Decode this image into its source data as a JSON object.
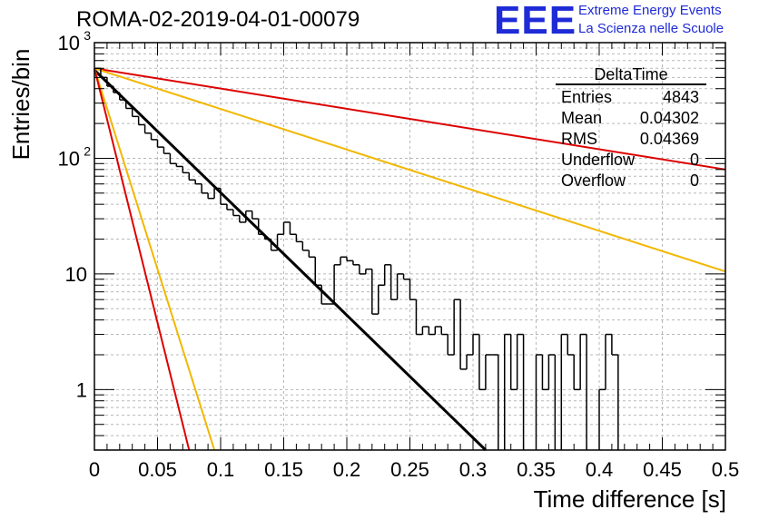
{
  "header": {
    "title": "ROMA-02-2019-04-01-00079",
    "logo_text": "EEE",
    "logo_line1": "Extreme Energy Events",
    "logo_line2": "La Scienza nelle Scuole"
  },
  "stats_box": {
    "title": "DeltaTime",
    "rows": [
      {
        "label": "Entries",
        "value": "4843"
      },
      {
        "label": "Mean",
        "value": "0.04302"
      },
      {
        "label": "RMS",
        "value": "0.04369"
      },
      {
        "label": "Underflow",
        "value": "0"
      },
      {
        "label": "Overflow",
        "value": "0"
      }
    ]
  },
  "chart_data": {
    "type": "histogram",
    "xlabel": "Time difference [s]",
    "ylabel": "Entries/bin",
    "xlim": [
      0,
      0.5
    ],
    "ylim": [
      0.3,
      1000
    ],
    "yscale": "log",
    "grid": true,
    "xticks": [
      "0",
      "0.05",
      "0.1",
      "0.15",
      "0.2",
      "0.25",
      "0.3",
      "0.35",
      "0.4",
      "0.45",
      "0.5"
    ],
    "yticks": [
      {
        "value": 1,
        "label": "1"
      },
      {
        "value": 10,
        "label": "10"
      },
      {
        "value": 100,
        "label": "10",
        "exp": "2"
      },
      {
        "value": 1000,
        "label": "10",
        "exp": "3"
      }
    ],
    "bin_width": 0.005,
    "histogram": [
      600,
      500,
      420,
      370,
      320,
      270,
      230,
      195,
      165,
      145,
      125,
      110,
      90,
      85,
      75,
      65,
      60,
      50,
      45,
      55,
      40,
      36,
      32,
      28,
      35,
      30,
      22,
      20,
      16,
      22,
      28,
      22,
      19,
      16,
      14,
      8,
      5.5,
      5.5,
      12,
      14,
      13,
      12,
      10,
      11,
      4.5,
      8,
      12,
      6,
      10,
      9,
      6,
      3,
      3.5,
      3,
      3.5,
      3,
      2,
      6,
      1.5,
      2,
      3,
      1,
      2,
      2,
      0,
      3,
      1,
      3,
      0,
      0,
      2,
      1,
      2,
      0,
      3,
      2,
      1,
      3,
      0,
      0,
      1,
      3,
      2,
      0,
      0,
      0,
      0,
      0,
      0,
      0,
      0,
      0,
      0,
      0,
      0,
      0,
      0,
      0,
      0,
      0
    ],
    "series": [
      {
        "color": "#000000",
        "x": [
          0,
          0.31
        ],
        "y": [
          580,
          0.3
        ]
      },
      {
        "color": "#dd0000",
        "x": [
          0,
          0.5
        ],
        "y": [
          600,
          80
        ]
      },
      {
        "color": "#f2b700",
        "x": [
          0,
          0.5
        ],
        "y": [
          600,
          10.5
        ]
      },
      {
        "color": "#f2b700",
        "x": [
          0,
          0.095
        ],
        "y": [
          600,
          0.3
        ]
      },
      {
        "color": "#dd0000",
        "x": [
          0,
          0.075
        ],
        "y": [
          600,
          0.3
        ]
      }
    ]
  }
}
